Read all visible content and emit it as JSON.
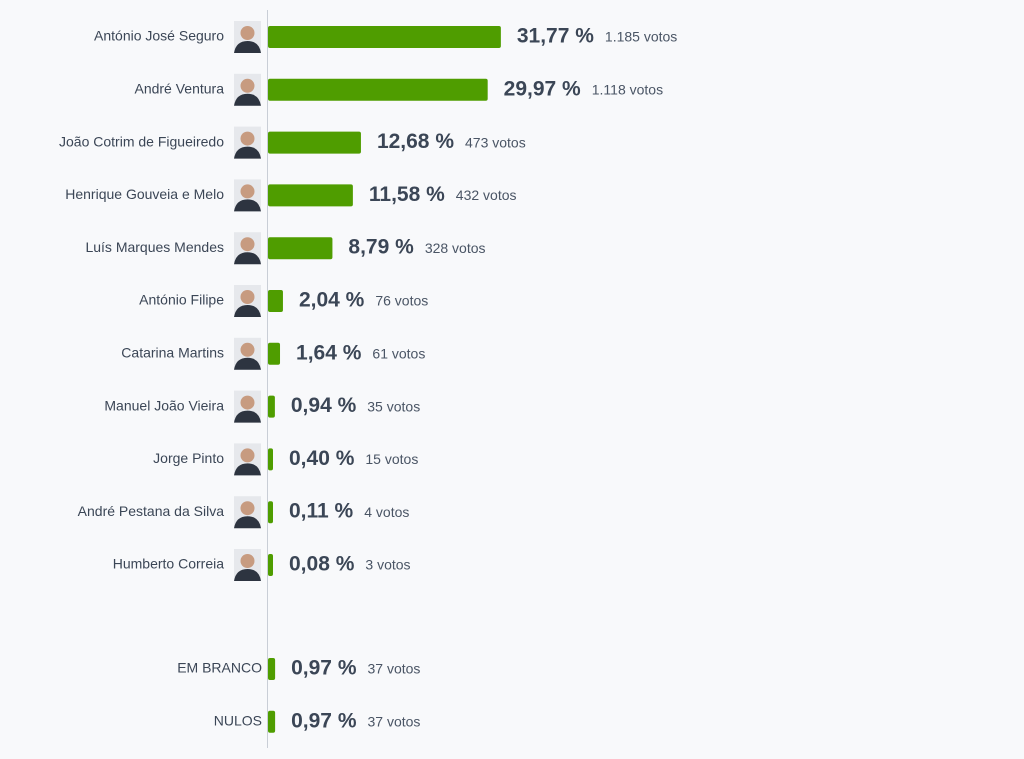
{
  "chart_data": [
    {
      "type": "bar",
      "orientation": "horizontal",
      "color": "#4f9d00",
      "xlim": [
        0,
        100
      ],
      "categories": [
        "António José Seguro",
        "André Ventura",
        "João Cotrim de Figueiredo",
        "Henrique Gouveia e Melo",
        "Luís Marques Mendes",
        "António Filipe",
        "Catarina Martins",
        "Manuel João Vieira",
        "Jorge Pinto",
        "André Pestana da Silva",
        "Humberto Correia"
      ],
      "values": [
        31.77,
        29.97,
        12.68,
        11.58,
        8.79,
        2.04,
        1.64,
        0.94,
        0.4,
        0.11,
        0.08
      ],
      "value_labels": [
        "31,77 %",
        "29,97 %",
        "12,68 %",
        "11,58 %",
        "8,79 %",
        "2,04 %",
        "1,64 %",
        "0,94 %",
        "0,40 %",
        "0,11 %",
        "0,08 %"
      ],
      "votes": [
        1185,
        1118,
        473,
        432,
        328,
        76,
        61,
        35,
        15,
        4,
        3
      ],
      "vote_labels": [
        "1.185 votos",
        "1.118 votos",
        "473 votos",
        "432 votos",
        "328 votos",
        "76 votos",
        "61 votos",
        "35 votos",
        "15 votos",
        "4 votos",
        "3 votos"
      ]
    },
    {
      "type": "bar",
      "orientation": "horizontal",
      "color": "#4f9d00",
      "xlim": [
        0,
        100
      ],
      "categories": [
        "EM BRANCO",
        "NULOS"
      ],
      "values": [
        0.97,
        0.97
      ],
      "value_labels": [
        "0,97 %",
        "0,97 %"
      ],
      "votes": [
        37,
        37
      ],
      "vote_labels": [
        "37 votos",
        "37 votos"
      ]
    }
  ]
}
